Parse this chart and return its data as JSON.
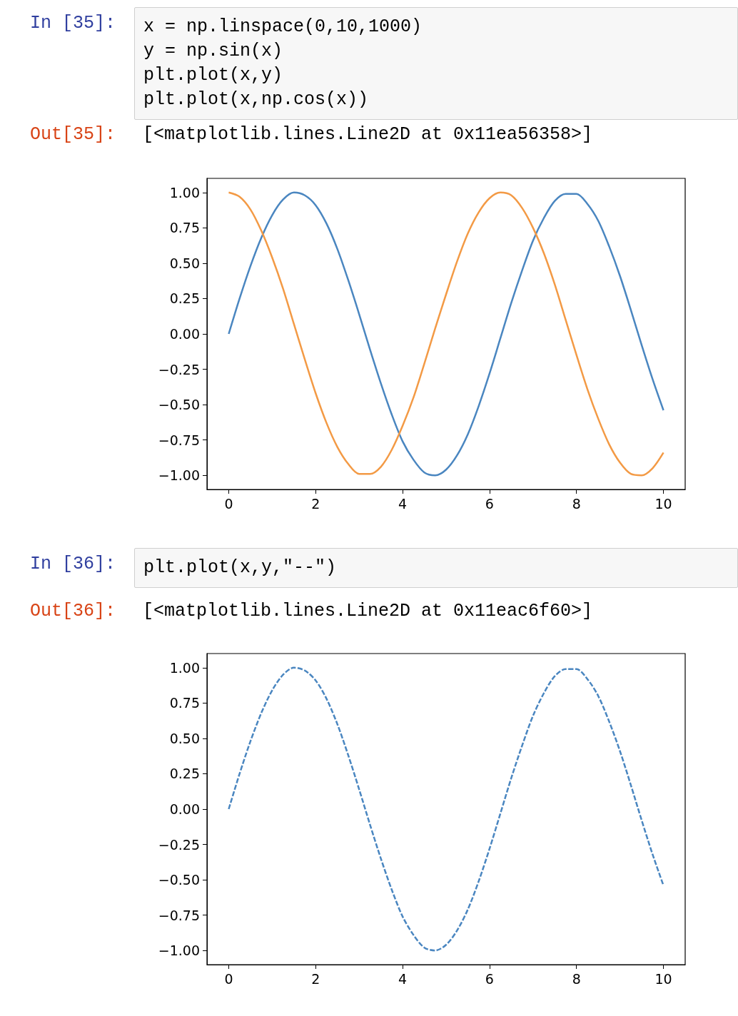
{
  "chart_data": [
    {
      "type": "line",
      "annotations": [
        "In [35]:",
        "x = np.linspace(0,10,1000)\ny = np.sin(x)\nplt.plot(x,y)\nplt.plot(x,np.cos(x))",
        "Out[35]:",
        "[<matplotlib.lines.Line2D at 0x11ea56358>]"
      ],
      "x": [
        0,
        0.25,
        0.5,
        0.75,
        1,
        1.25,
        1.5,
        1.75,
        2,
        2.25,
        2.5,
        2.75,
        3,
        3.25,
        3.5,
        3.75,
        4,
        4.25,
        4.5,
        4.75,
        5,
        5.25,
        5.5,
        5.75,
        6,
        6.25,
        6.5,
        6.75,
        7,
        7.25,
        7.5,
        7.75,
        8,
        8.25,
        8.5,
        8.75,
        9,
        9.25,
        9.5,
        9.75,
        10
      ],
      "series": [
        {
          "color": "#4a86c0",
          "values": [
            0,
            0.25,
            0.48,
            0.68,
            0.84,
            0.95,
            1.0,
            0.98,
            0.91,
            0.78,
            0.6,
            0.38,
            0.14,
            -0.11,
            -0.35,
            -0.57,
            -0.76,
            -0.89,
            -0.98,
            -1.0,
            -0.96,
            -0.86,
            -0.71,
            -0.51,
            -0.28,
            -0.03,
            0.22,
            0.45,
            0.66,
            0.82,
            0.94,
            0.99,
            0.99,
            0.92,
            0.8,
            0.62,
            0.41,
            0.17,
            -0.08,
            -0.32,
            -0.54
          ]
        },
        {
          "color": "#f39a45",
          "values": [
            1.0,
            0.97,
            0.88,
            0.73,
            0.54,
            0.32,
            0.07,
            -0.18,
            -0.42,
            -0.63,
            -0.8,
            -0.92,
            -0.99,
            -0.99,
            -0.94,
            -0.82,
            -0.65,
            -0.45,
            -0.21,
            0.04,
            0.28,
            0.51,
            0.71,
            0.86,
            0.96,
            1.0,
            0.98,
            0.89,
            0.75,
            0.57,
            0.35,
            0.1,
            -0.15,
            -0.39,
            -0.6,
            -0.78,
            -0.91,
            -0.99,
            -1.0,
            -0.95,
            -0.84
          ]
        }
      ],
      "xlim": [
        -0.5,
        10.5
      ],
      "xticks": [
        0,
        2,
        4,
        6,
        8,
        10
      ],
      "ylim": [
        -1.1,
        1.1
      ],
      "yticks": [
        {
          "value": -1,
          "label": "−1.00"
        },
        {
          "value": -0.75,
          "label": "−0.75"
        },
        {
          "value": -0.5,
          "label": "−0.50"
        },
        {
          "value": -0.25,
          "label": "−0.25"
        },
        {
          "value": 0,
          "label": "0.00"
        },
        {
          "value": 0.25,
          "label": "0.25"
        },
        {
          "value": 0.5,
          "label": "0.50"
        },
        {
          "value": 0.75,
          "label": "0.75"
        },
        {
          "value": 1,
          "label": "1.00"
        }
      ],
      "marker": "none",
      "line_style": "solid"
    },
    {
      "type": "line",
      "annotations": [
        "In [36]:",
        "plt.plot(x,y,\"--\")",
        "Out[36]:",
        "[<matplotlib.lines.Line2D at 0x11eac6f60>]"
      ],
      "x": [
        0,
        0.25,
        0.5,
        0.75,
        1,
        1.25,
        1.5,
        1.75,
        2,
        2.25,
        2.5,
        2.75,
        3,
        3.25,
        3.5,
        3.75,
        4,
        4.25,
        4.5,
        4.75,
        5,
        5.25,
        5.5,
        5.75,
        6,
        6.25,
        6.5,
        6.75,
        7,
        7.25,
        7.5,
        7.75,
        8,
        8.25,
        8.5,
        8.75,
        9,
        9.25,
        9.5,
        9.75,
        10
      ],
      "series": [
        {
          "color": "#4a86c0",
          "values": [
            0,
            0.25,
            0.48,
            0.68,
            0.84,
            0.95,
            1.0,
            0.98,
            0.91,
            0.78,
            0.6,
            0.38,
            0.14,
            -0.11,
            -0.35,
            -0.57,
            -0.76,
            -0.89,
            -0.98,
            -1.0,
            -0.96,
            -0.86,
            -0.71,
            -0.51,
            -0.28,
            -0.03,
            0.22,
            0.45,
            0.66,
            0.82,
            0.94,
            0.99,
            0.99,
            0.92,
            0.8,
            0.62,
            0.41,
            0.17,
            -0.08,
            -0.32,
            -0.54
          ]
        }
      ],
      "xlim": [
        -0.5,
        10.5
      ],
      "xticks": [
        0,
        2,
        4,
        6,
        8,
        10
      ],
      "ylim": [
        -1.1,
        1.1
      ],
      "yticks": [
        {
          "value": -1,
          "label": "−1.00"
        },
        {
          "value": -0.75,
          "label": "−0.75"
        },
        {
          "value": -0.5,
          "label": "−0.50"
        },
        {
          "value": -0.25,
          "label": "−0.25"
        },
        {
          "value": 0,
          "label": "0.00"
        },
        {
          "value": 0.25,
          "label": "0.25"
        },
        {
          "value": 0.5,
          "label": "0.50"
        },
        {
          "value": 0.75,
          "label": "0.75"
        },
        {
          "value": 1,
          "label": "1.00"
        }
      ],
      "marker": "none",
      "line_style": "dashed"
    }
  ]
}
